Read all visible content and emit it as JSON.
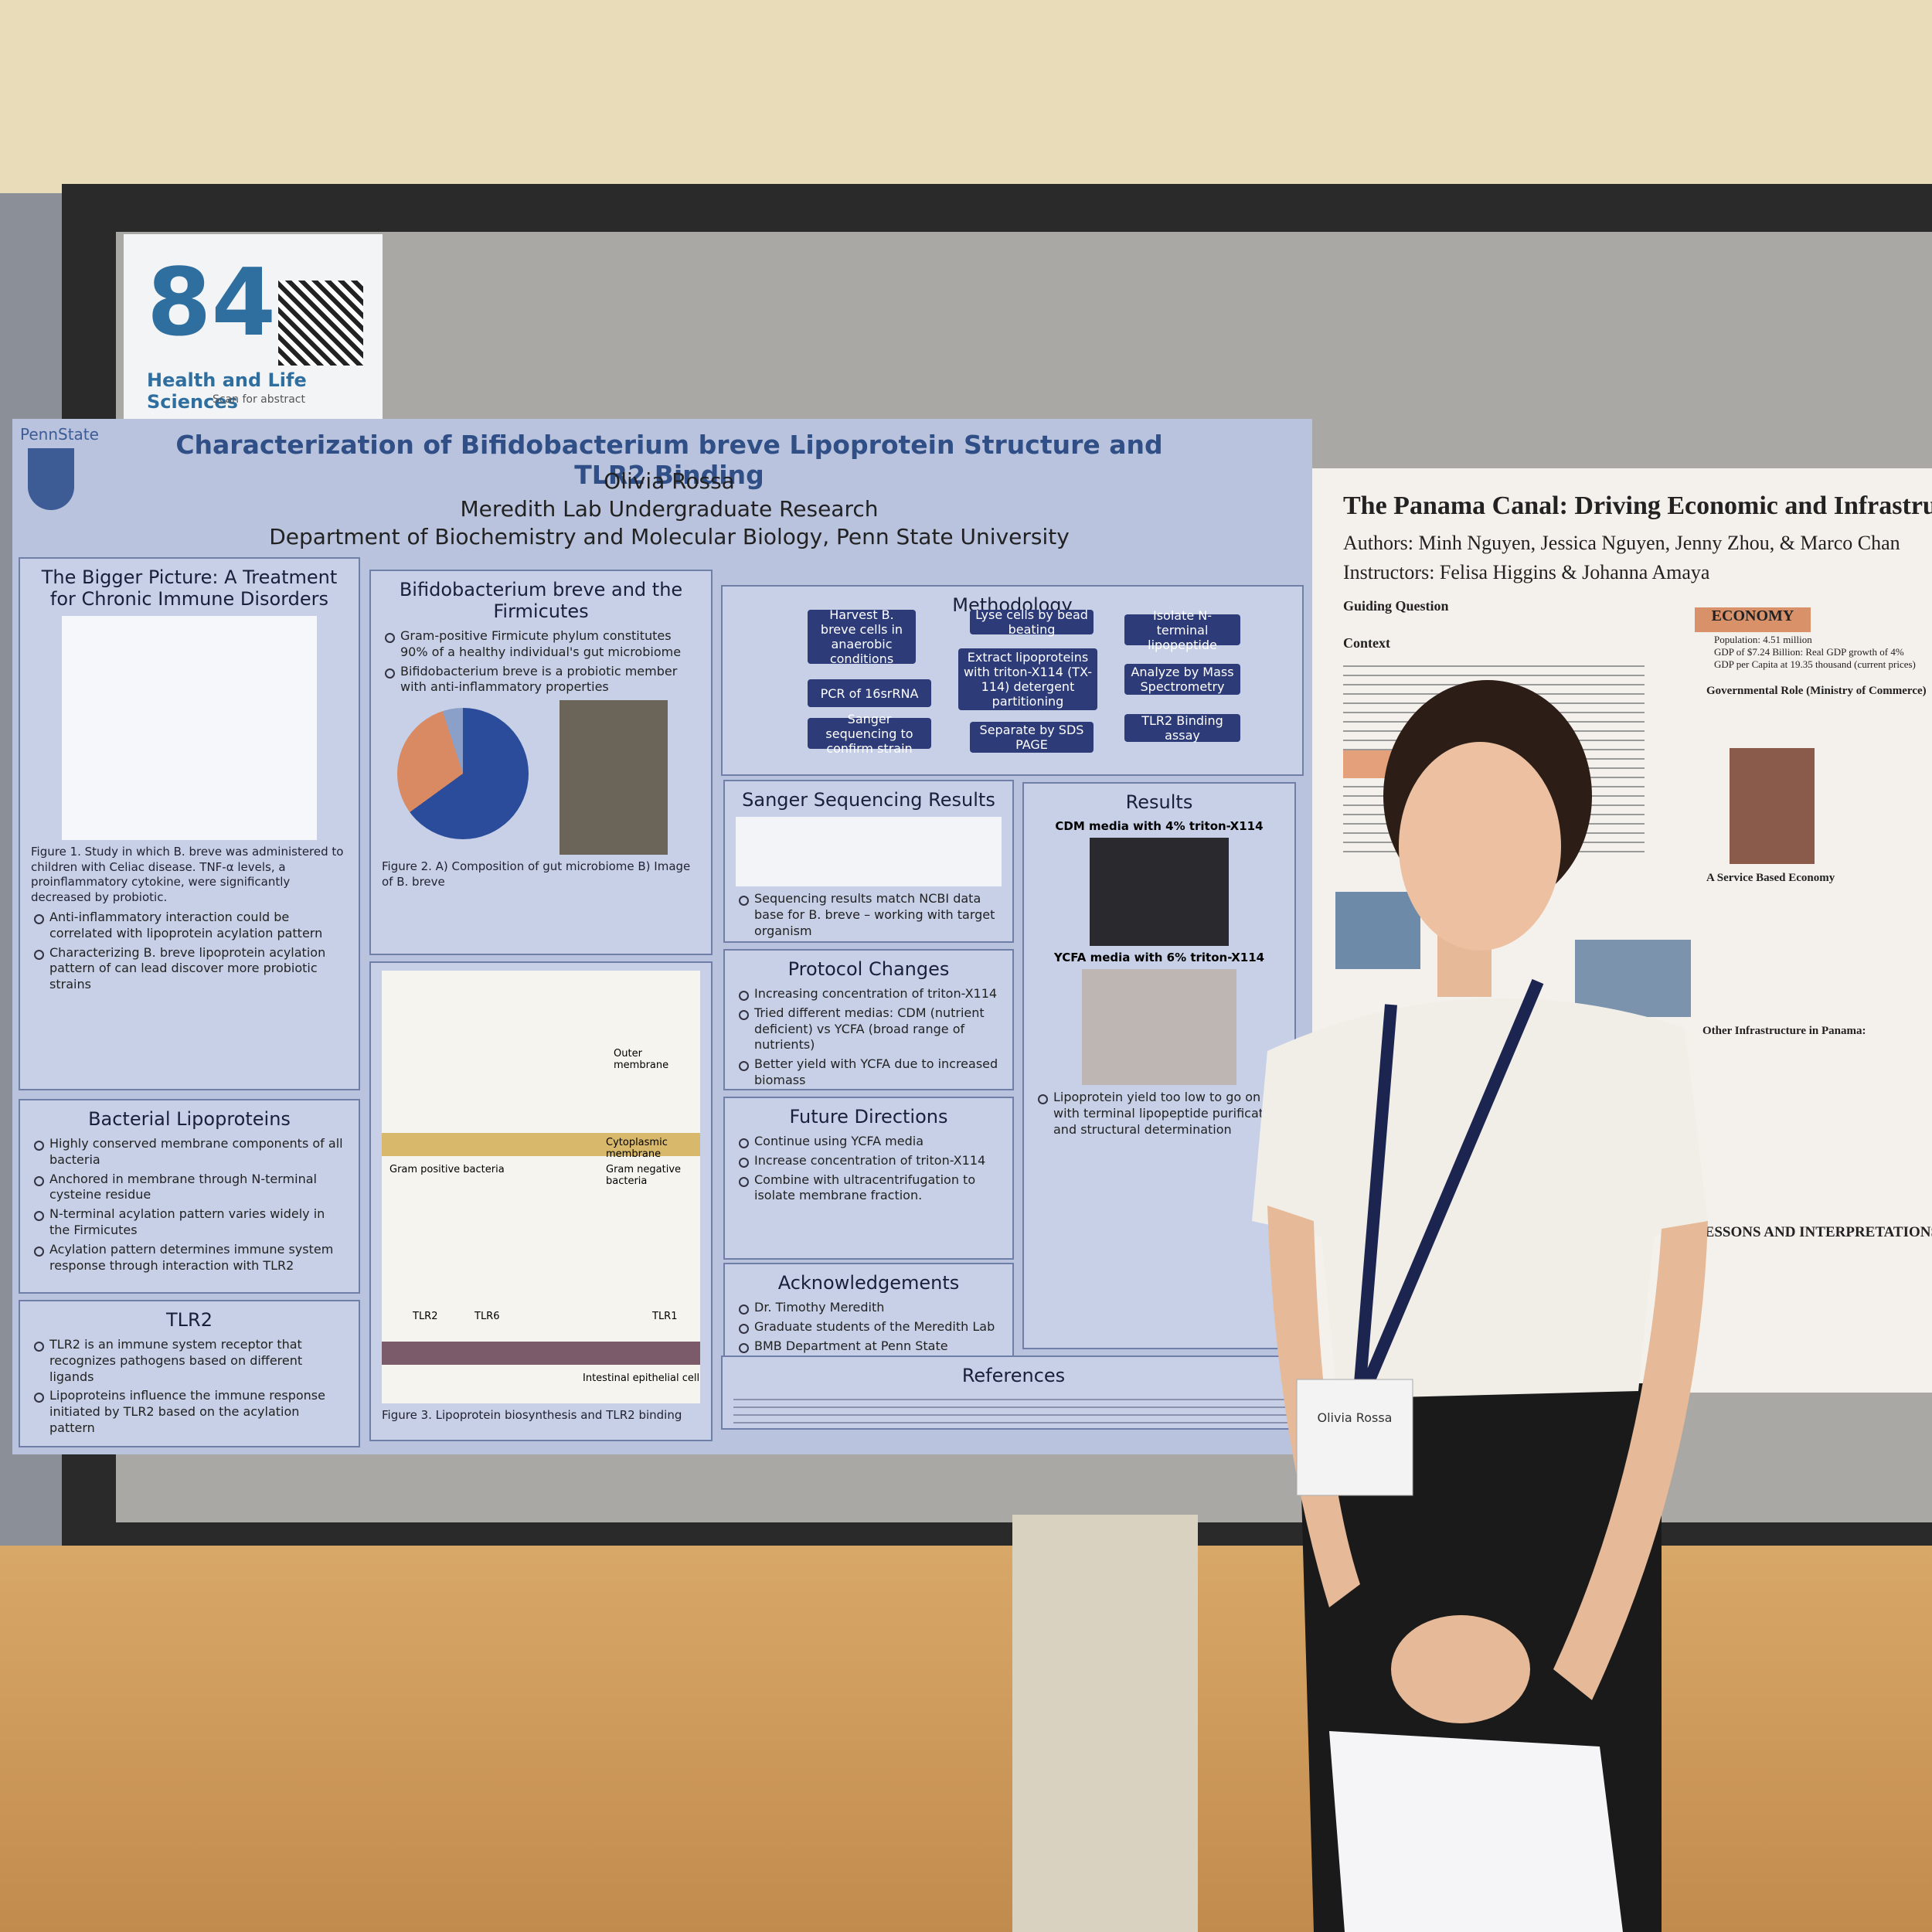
{
  "sign": {
    "number": "84",
    "category": "Health and Life Sciences",
    "note": "Scan for abstract"
  },
  "poster": {
    "logo": "PennState",
    "title": "Characterization of Bifidobacterium breve Lipoprotein Structure and TLR2 Binding",
    "author": "Olivia Rossa",
    "lab": "Meredith Lab Undergraduate Research",
    "department": "Department of Biochemistry and Molecular Biology, Penn State University",
    "sections": [
      {
        "heading": "The Bigger Picture: A Treatment for Chronic Immune Disorders",
        "caption": "Figure 1. Study in which B. breve was administered to children with Celiac disease. TNF-α levels, a proinflammatory cytokine, were significantly decreased by probiotic.",
        "items": [
          "Anti-inflammatory interaction could be correlated with lipoprotein acylation pattern",
          "Characterizing B. breve lipoprotein acylation pattern of can lead discover more probiotic strains"
        ]
      },
      {
        "heading": "Bifidobacterium breve and the Firmicutes",
        "items": [
          "Gram-positive Firmicute phylum constitutes 90% of a healthy individual's gut microbiome",
          "Bifidobacterium breve is a probiotic member with anti-inflammatory properties"
        ],
        "caption": "Figure 2. A) Composition of gut microbiome B) Image of B. breve"
      },
      {
        "heading": "Methodology",
        "items": [
          "Harvest B. breve cells in anaerobic conditions",
          "PCR of 16srRNA",
          "Sanger sequencing to confirm strain",
          "Lyse cells by bead beating",
          "Extract lipoproteins with triton-X114 (TX-114) detergent partitioning",
          "Separate by SDS PAGE",
          "Isolate N-terminal lipopeptide",
          "Analyze by Mass Spectrometry",
          "TLR2 Binding assay"
        ]
      },
      {
        "heading": "Sanger Sequencing Results",
        "items": [
          "Sequencing results match NCBI data base for B. breve – working with target organism"
        ]
      },
      {
        "heading": "Results",
        "subheads": [
          "CDM media with 4% triton-X114",
          "YCFA media with 6% triton-X114"
        ],
        "items": [
          "Lipoprotein yield too low to go on with terminal lipopeptide purification and structural determination"
        ]
      },
      {
        "heading": "Protocol Changes",
        "items": [
          "Increasing concentration of triton-X114",
          "Tried different medias: CDM (nutrient deficient) vs YCFA (broad range of nutrients)",
          "Better yield with YCFA due to increased biomass"
        ]
      },
      {
        "heading": "Future Directions",
        "items": [
          "Continue using YCFA media",
          "Increase concentration of triton-X114",
          "Combine with ultracentrifugation to isolate membrane fraction."
        ]
      },
      {
        "heading": "Acknowledgements",
        "items": [
          "Dr. Timothy Meredith",
          "Graduate students of the Meredith Lab",
          "BMB Department at Penn State"
        ]
      },
      {
        "heading": "References"
      },
      {
        "heading": "Bacterial Lipoproteins",
        "items": [
          "Highly conserved membrane components of all bacteria",
          "Anchored in membrane through N-terminal cysteine residue",
          "N-terminal acylation pattern varies widely in the Firmicutes",
          "Acylation pattern determines immune system response through interaction with TLR2"
        ]
      },
      {
        "heading": "TLR2",
        "items": [
          "TLR2 is an immune system receptor that recognizes pathogens based on different ligands",
          "Lipoproteins influence the immune response initiated by TLR2 based on the acylation pattern"
        ]
      },
      {
        "caption": "Figure 3. Lipoprotein biosynthesis and TLR2 binding",
        "labels": [
          "Gram positive bacteria",
          "Gram negative bacteria",
          "Cytoplasmic membrane",
          "Outer membrane",
          "TLR2",
          "TLR6",
          "TLR1",
          "Intestinal epithelial cell"
        ]
      }
    ]
  },
  "poster2": {
    "title": "The Panama Canal: Driving Economic and Infrastruc",
    "authors": "Authors: Minh Nguyen, Jessica Nguyen, Jenny Zhou, & Marco Chan",
    "instructors": "Instructors: Felisa Higgins & Johanna Amaya",
    "guiding": "Guiding Question",
    "context": "Context",
    "economy": "ECONOMY",
    "economy_items": [
      "Population: 4.51 million",
      "GDP of $7.24 Billion: Real GDP growth of 4%",
      "GDP per Capita at 19.35 thousand (current prices)"
    ],
    "government": "Governmental Role (Ministry of Commerce)",
    "service": "A Service Based Economy",
    "infrastructure": "Other Infrastructure in Panama:",
    "lessons": "LESSONS AND INTERPRETATIONS"
  },
  "badge": "Olivia Rossa"
}
